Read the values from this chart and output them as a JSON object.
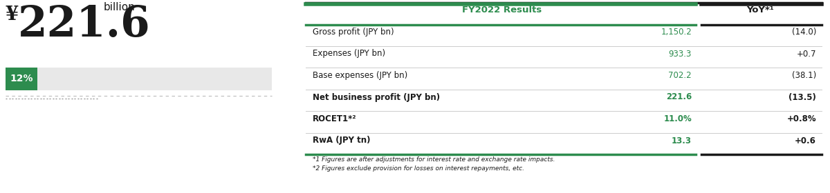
{
  "title_yen": "¥",
  "title_value": "221.6",
  "title_unit": "billion",
  "percent_label": "12%",
  "percent_value": 0.12,
  "bar_bg_color": "#e8e8e8",
  "green_color": "#2d8c4e",
  "dark_color": "#1a1a1a",
  "gray_line": "#cccccc",
  "header_fy": "FY2022 Results",
  "header_yoy": "YoY*¹",
  "rows": [
    {
      "label": "Gross profit (JPY bn)",
      "value": "1,150.2",
      "yoy": "(14.0)",
      "bold": false
    },
    {
      "label": "Expenses (JPY bn)",
      "value": "933.3",
      "yoy": "+0.7",
      "bold": false
    },
    {
      "label": "Base expenses (JPY bn)",
      "value": "702.2",
      "yoy": "(38.1)",
      "bold": false
    },
    {
      "label": "Net business profit (JPY bn)",
      "value": "221.6",
      "yoy": "(13.5)",
      "bold": true
    },
    {
      "label": "ROCET1*²",
      "value": "11.0%",
      "yoy": "+0.8%",
      "bold": true
    },
    {
      "label": "RwA (JPY tn)",
      "value": "13.3",
      "yoy": "+0.6",
      "bold": true
    }
  ],
  "footnote1": "*1 Figures are after adjustments for interest rate and exchange rate impacts.",
  "footnote2": "*2 Figures exclude provision for losses on interest repayments, etc.",
  "fig_w": 12.0,
  "fig_h": 2.8,
  "dpi": 100
}
